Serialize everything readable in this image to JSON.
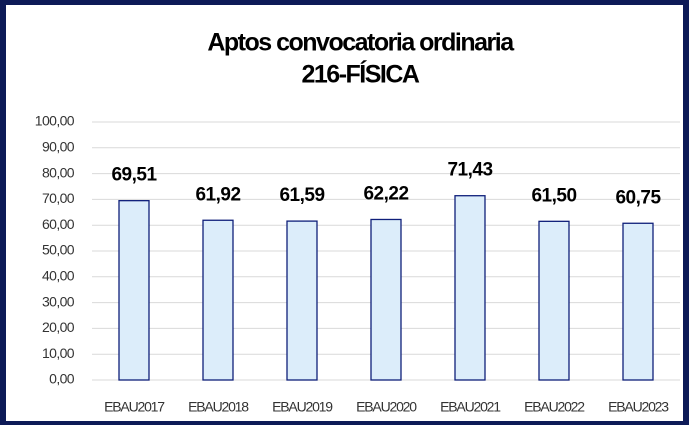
{
  "chart_data": {
    "type": "bar",
    "title": "Aptos convocatoria ordinaria",
    "subtitle": "216-FÍSICA",
    "categories": [
      "EBAU2017",
      "EBAU2018",
      "EBAU2019",
      "EBAU2020",
      "EBAU2021",
      "EBAU2022",
      "EBAU2023"
    ],
    "values": [
      69.51,
      61.92,
      61.59,
      62.22,
      71.43,
      61.5,
      60.75
    ],
    "value_labels": [
      "69,51",
      "61,92",
      "61,59",
      "62,22",
      "71,43",
      "61,50",
      "60,75"
    ],
    "color": "#dcedfa",
    "edge_color": "#0f1f7a",
    "ylim": [
      0,
      100
    ],
    "yticks": [
      {
        "value": 0,
        "label": "0,00"
      },
      {
        "value": 10,
        "label": "10,00"
      },
      {
        "value": 20,
        "label": "20,00"
      },
      {
        "value": 30,
        "label": "30,00"
      },
      {
        "value": 40,
        "label": "40,00"
      },
      {
        "value": 50,
        "label": "50,00"
      },
      {
        "value": 60,
        "label": "60,00"
      },
      {
        "value": 70,
        "label": "70,00"
      },
      {
        "value": 80,
        "label": "80,00"
      },
      {
        "value": 90,
        "label": "90,00"
      },
      {
        "value": 100,
        "label": "100,00"
      }
    ],
    "grid": true
  }
}
